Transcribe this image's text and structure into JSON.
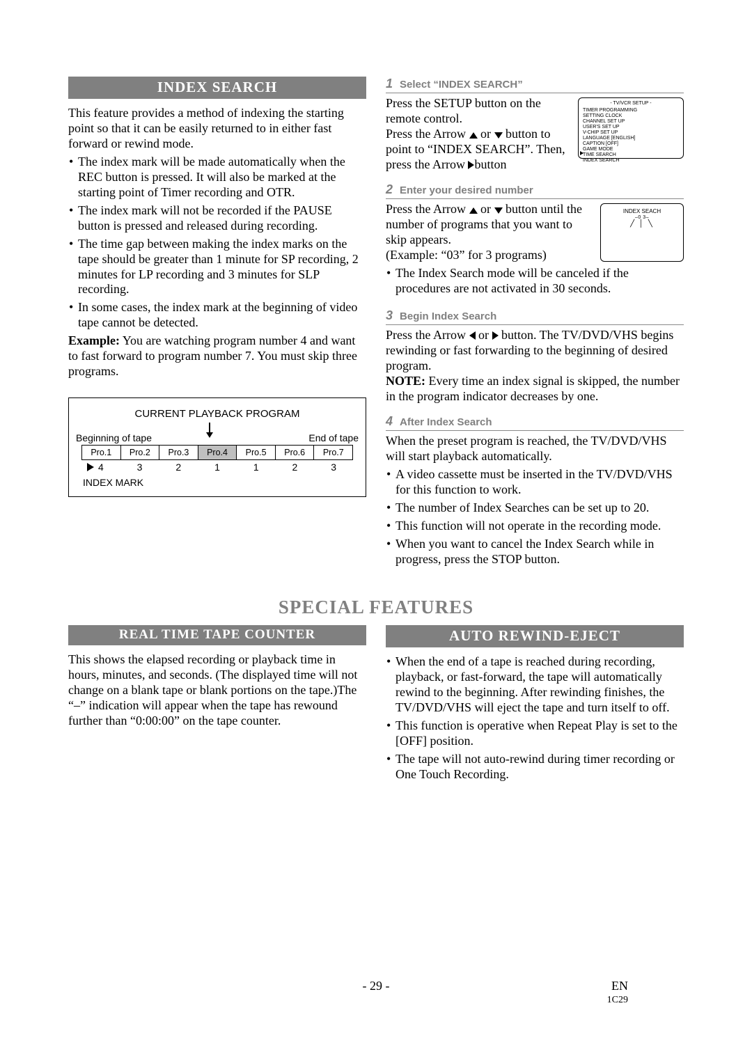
{
  "sections": {
    "index_search": {
      "bar": "INDEX SEARCH",
      "intro": "This feature provides a method of indexing the starting point so that it can be easily returned to in either fast forward or rewind mode.",
      "bullets": [
        "The index mark will be made automatically when the REC button is pressed. It will also be marked at the starting point of Timer recording and OTR.",
        "The index mark will not be recorded if the PAUSE button is pressed and released during recording.",
        "The time gap between making the index marks on the tape should be greater than 1 minute for SP recording, 2 minutes for LP recording and 3 minutes for SLP recording.",
        "In some cases, the index mark at the beginning of video tape cannot be detected."
      ],
      "example_label": "Example:",
      "example_text": "You are watching program number 4 and want to fast forward to program number 7. You must skip three programs."
    },
    "diagram": {
      "title": "CURRENT PLAYBACK PROGRAM",
      "begin_label": "Beginning of tape",
      "end_label": "End of tape",
      "programs": [
        "Pro.1",
        "Pro.2",
        "Pro.3",
        "Pro.4",
        "Pro.5",
        "Pro.6",
        "Pro.7"
      ],
      "highlight_index": 3,
      "skip_counts": [
        "4",
        "3",
        "2",
        "1",
        "1",
        "2",
        "3"
      ],
      "index_mark_label": "INDEX MARK"
    },
    "steps": {
      "s1": {
        "num": "1",
        "title": "Select “INDEX SEARCH”",
        "line1": "Press the SETUP button on the remote control.",
        "line2a": "Press the Arrow ",
        "line2b": " or ",
        "line2c": " button to point to “INDEX SEARCH”. Then, press the Arrow ",
        "line2d": "button"
      },
      "osd_menu": {
        "title": "- TV/VCR SETUP -",
        "items": [
          "TIMER PROGRAMMING",
          "SETTING CLOCK",
          "CHANNEL SET UP",
          "USER'S SET UP",
          "V-CHIP SET UP",
          "LANGUAGE  [ENGLISH]",
          "CAPTION    [OFF]",
          "GAME MODE",
          "TIME SEARCH",
          "INDEX SEARCH"
        ]
      },
      "s2": {
        "num": "2",
        "title": "Enter your desired number",
        "line1a": "Press the Arrow ",
        "line1b": " or ",
        "line1c": " button until the number of programs that you want to skip appears.",
        "line2": "(Example: “03” for 3 programs)",
        "bullet": "The Index Search mode will be canceled if the procedures are not activated in 30 seconds."
      },
      "osd_small": {
        "hdr": "INDEX SEACH",
        "sub": "–0 3–",
        "dashes": "╱ │ ╲"
      },
      "s3": {
        "num": "3",
        "title": "Begin Index Search",
        "line1a": "Press the Arrow ",
        "line1b": " or ",
        "line1c": " button. The TV/DVD/VHS begins rewinding or fast forwarding to the beginning of desired program.",
        "note_label": "NOTE:",
        "note": "Every time an index signal is skipped, the number in the program indicator decreases by one."
      },
      "s4": {
        "num": "4",
        "title": "After Index Search",
        "line1": "When the preset program is reached, the TV/DVD/VHS will start playback automatically.",
        "bullets": [
          "A video cassette must be inserted in the TV/DVD/VHS for this function to work.",
          "The number of Index Searches can be set up to 20.",
          "This function will not operate in the recording mode.",
          "When you want to cancel the Index Search while in progress, press the STOP button."
        ]
      }
    },
    "special": {
      "title": "SPECIAL FEATURES"
    },
    "rttc": {
      "bar": "REAL TIME TAPE COUNTER",
      "text": "This shows the elapsed recording or playback time in hours, minutes, and seconds. (The displayed time will not change on a blank tape or blank portions on the tape.)The “–” indication will appear when the tape has rewound further than “0:00:00” on the tape counter."
    },
    "are": {
      "bar": "AUTO REWIND-EJECT",
      "bullets": [
        "When the end of a tape is reached during recording, playback, or fast-forward, the tape will automatically rewind to the beginning. After rewinding finishes, the TV/DVD/VHS will eject the tape and turn itself to off.",
        "This function is operative when Repeat Play is set to the [OFF] position.",
        "The tape will not auto-rewind during timer recording or One Touch Recording."
      ]
    },
    "footer": {
      "page": "- 29 -",
      "lang": "EN",
      "code": "1C29"
    }
  }
}
